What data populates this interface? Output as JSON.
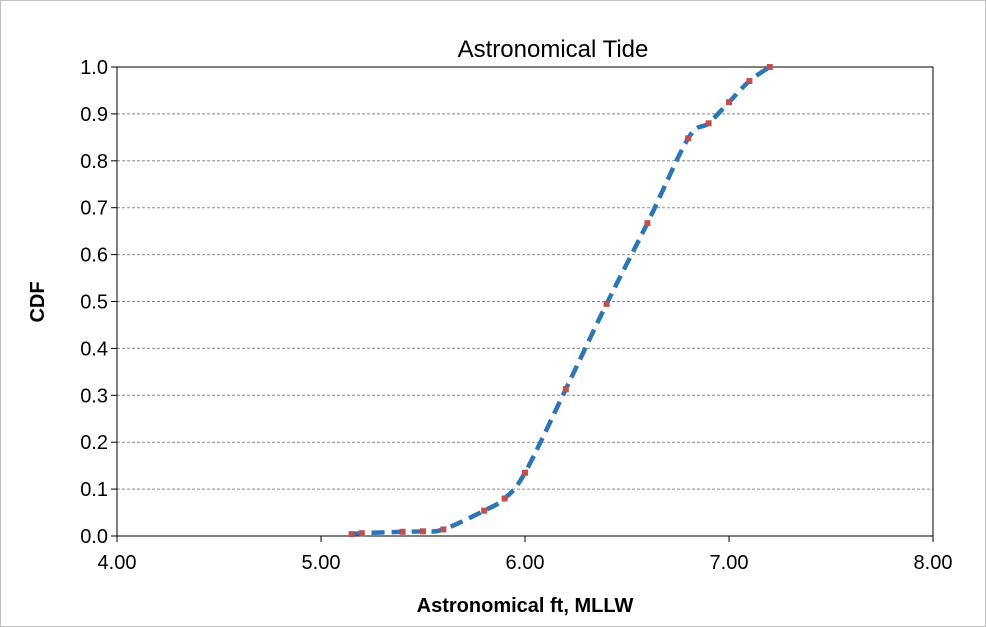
{
  "chart_data": {
    "type": "line",
    "title": "Astronomical Tide",
    "xlabel": "Astronomical ft, MLLW",
    "ylabel": "CDF",
    "xlim": [
      4.0,
      8.0
    ],
    "ylim": [
      0.0,
      1.0
    ],
    "x_ticks": [
      "4.00",
      "5.00",
      "6.00",
      "7.00",
      "8.00"
    ],
    "y_ticks": [
      "0.0",
      "0.1",
      "0.2",
      "0.3",
      "0.4",
      "0.5",
      "0.6",
      "0.7",
      "0.8",
      "0.9",
      "1.0"
    ],
    "grid": "horizontal dashed",
    "legend": "none",
    "series": [
      {
        "style": "dashed-line",
        "color": "#2E75B6",
        "x": [
          5.15,
          5.2,
          5.4,
          5.5,
          5.6,
          5.8,
          5.9,
          6.0,
          6.2,
          6.4,
          6.6,
          6.8,
          6.9,
          7.0,
          7.1,
          7.2
        ],
        "y": [
          0.004,
          0.006,
          0.009,
          0.01,
          0.014,
          0.054,
          0.08,
          0.135,
          0.313,
          0.495,
          0.667,
          0.848,
          0.88,
          0.925,
          0.97,
          1.0
        ]
      },
      {
        "style": "markers",
        "color": "#C0504D",
        "x": [
          5.15,
          5.2,
          5.4,
          5.5,
          5.6,
          5.8,
          5.9,
          6.0,
          6.2,
          6.4,
          6.6,
          6.8,
          6.9,
          7.0,
          7.1,
          7.2
        ],
        "y": [
          0.004,
          0.006,
          0.009,
          0.01,
          0.014,
          0.054,
          0.08,
          0.135,
          0.313,
          0.495,
          0.667,
          0.848,
          0.88,
          0.925,
          0.97,
          1.0
        ]
      }
    ]
  }
}
